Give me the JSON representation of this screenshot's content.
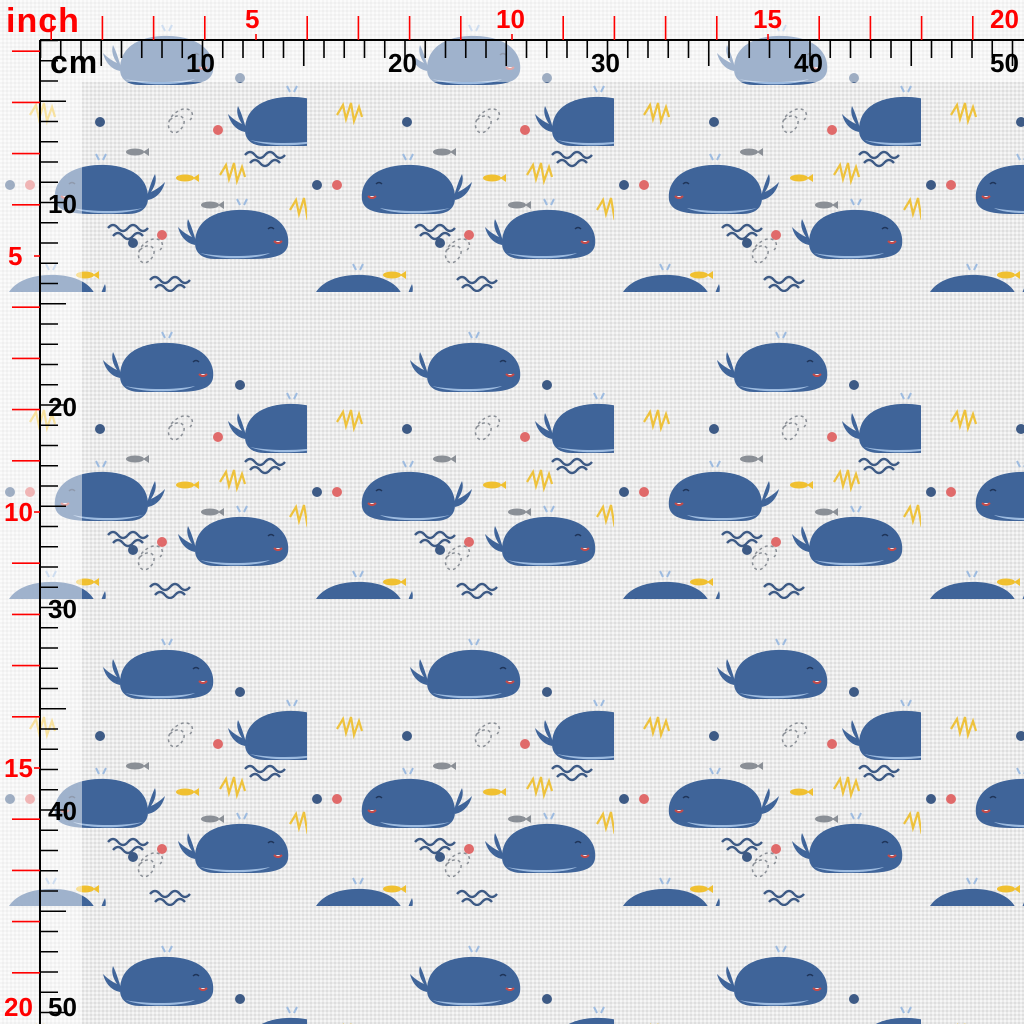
{
  "preview": {
    "title": "",
    "pattern": "blue whales with fish, waves, dots and squiggles",
    "colors": {
      "background": "#ececec",
      "whale": "#3f6499",
      "whale_belly": "#9dbbe0",
      "dot_red": "#e06a6a",
      "dot_blue": "#3d5a85",
      "fish_yellow": "#f0c030",
      "fish_grey": "#8a8f96",
      "squiggle": "#eec23c",
      "inch_ruler": "#ff0000",
      "cm_ruler": "#000000"
    }
  },
  "ruler": {
    "inch_unit": "inch",
    "cm_unit": "cm",
    "inch_labels_top": [
      "5",
      "10",
      "15",
      "20"
    ],
    "cm_labels_top": [
      "10",
      "20",
      "30",
      "40",
      "50"
    ],
    "inch_labels_left": [
      "5",
      "10",
      "15",
      "20"
    ],
    "cm_labels_left": [
      "10",
      "20",
      "30",
      "40",
      "50"
    ]
  }
}
